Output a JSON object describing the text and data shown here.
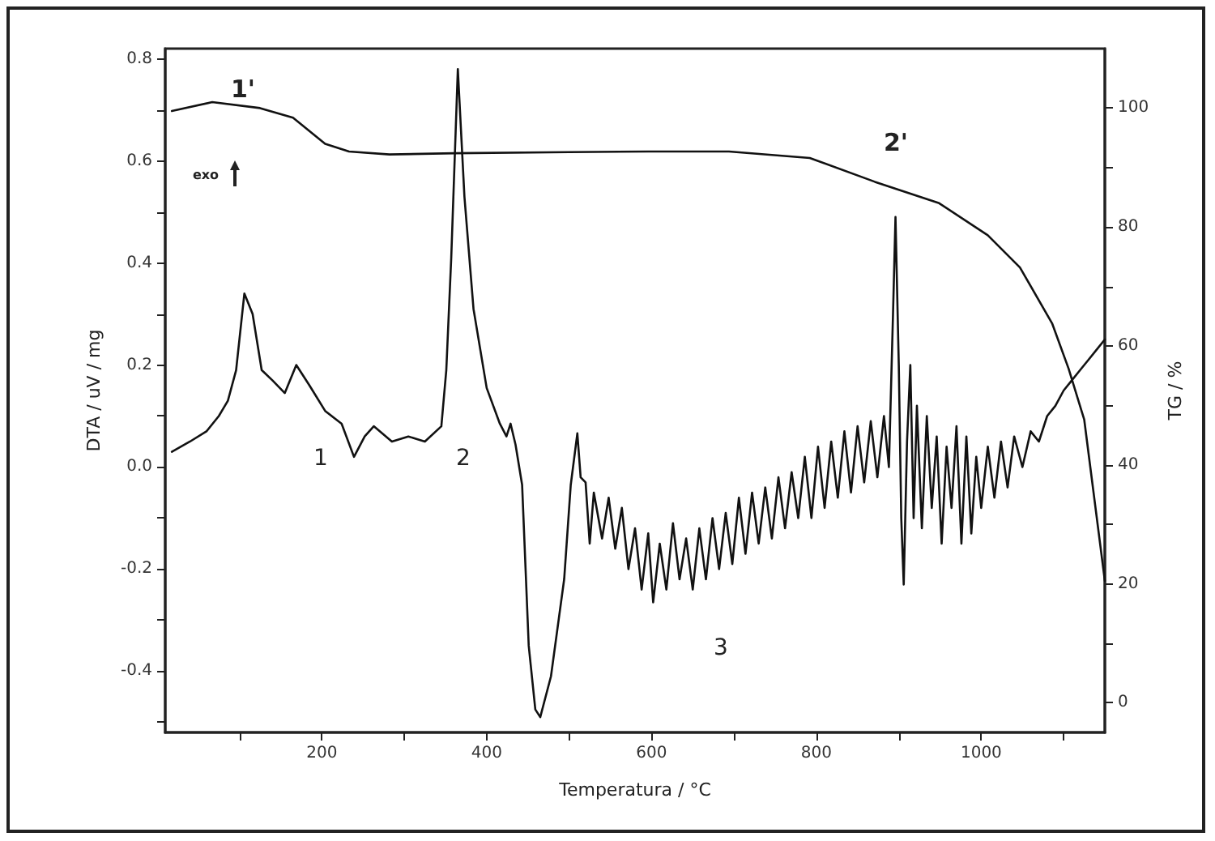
{
  "chart_data": {
    "type": "line",
    "xlabel": "Temperatura / °C",
    "ylabel": "DTA / uV / mg",
    "y2label": "TG / %",
    "xlim": [
      10,
      1150
    ],
    "ylim": [
      -0.52,
      0.82
    ],
    "y2lim": [
      -5,
      110
    ],
    "xticks": [
      {
        "value": 100,
        "label": null
      },
      200,
      {
        "value": 300,
        "label": null
      },
      400,
      {
        "value": 500,
        "label": null
      },
      600,
      {
        "value": 700,
        "label": null
      },
      800,
      {
        "value": 900,
        "label": null
      },
      1000,
      {
        "value": 1100,
        "label": null
      }
    ],
    "yticks": [
      {
        "value": -0.5,
        "label": null
      },
      -0.4,
      {
        "value": -0.3,
        "label": null
      },
      -0.2,
      {
        "value": -0.1,
        "label": null
      },
      {
        "value": 0,
        "label": "0.0"
      },
      {
        "value": 0.1,
        "label": null
      },
      0.2,
      {
        "value": 0.3,
        "label": null
      },
      0.4,
      {
        "value": 0.5,
        "label": null
      },
      0.6,
      {
        "value": 0.7,
        "label": null
      },
      0.8
    ],
    "y2ticks": [
      0,
      {
        "value": 10,
        "label": null
      },
      20,
      {
        "value": 30,
        "label": null
      },
      40,
      {
        "value": 50,
        "label": null
      },
      60,
      {
        "value": 70,
        "label": null
      },
      80,
      {
        "value": 90,
        "label": null
      },
      100
    ],
    "grid": false,
    "marker": "none",
    "line_style": "solid",
    "series": [
      {
        "color": "#111111",
        "x": [
          18,
          40,
          60,
          75,
          86,
          96,
          106,
          116,
          127,
          140,
          155,
          169,
          185,
          204,
          224,
          239,
          252,
          263,
          285,
          305,
          325,
          345,
          351,
          357,
          365,
          373,
          384,
          400,
          416,
          424,
          429,
          435,
          443,
          451,
          459,
          465,
          478,
          494,
          502,
          510,
          514,
          520,
          525,
          530,
          540,
          548,
          556,
          564,
          572,
          580,
          588,
          596,
          602,
          610,
          618,
          626,
          634,
          642,
          650,
          658,
          666,
          674,
          682,
          690,
          698,
          706,
          714,
          722,
          730,
          738,
          746,
          754,
          762,
          770,
          778,
          786,
          794,
          802,
          810,
          818,
          826,
          834,
          842,
          850,
          858,
          866,
          874,
          882,
          888,
          893,
          896,
          900,
          903,
          906,
          910,
          914,
          918,
          922,
          928,
          934,
          940,
          946,
          952,
          958,
          964,
          970,
          976,
          982,
          988,
          994,
          1000,
          1008,
          1016,
          1024,
          1032,
          1040,
          1050,
          1060,
          1070,
          1080,
          1090,
          1100,
          1110,
          1120,
          1130,
          1140,
          1150
        ],
        "values": [
          0.03,
          0.05,
          0.07,
          0.1,
          0.13,
          0.19,
          0.34,
          0.3,
          0.19,
          0.17,
          0.145,
          0.2,
          0.16,
          0.11,
          0.085,
          0.02,
          0.06,
          0.08,
          0.05,
          0.06,
          0.05,
          0.08,
          0.19,
          0.41,
          0.78,
          0.53,
          0.31,
          0.155,
          0.085,
          0.06,
          0.085,
          0.044,
          -0.035,
          -0.35,
          -0.475,
          -0.49,
          -0.41,
          -0.22,
          -0.035,
          0.066,
          -0.02,
          -0.03,
          -0.15,
          -0.05,
          -0.14,
          -0.06,
          -0.16,
          -0.08,
          -0.2,
          -0.12,
          -0.24,
          -0.13,
          -0.265,
          -0.15,
          -0.24,
          -0.11,
          -0.22,
          -0.14,
          -0.24,
          -0.12,
          -0.22,
          -0.1,
          -0.2,
          -0.09,
          -0.19,
          -0.06,
          -0.17,
          -0.05,
          -0.15,
          -0.04,
          -0.14,
          -0.02,
          -0.12,
          -0.01,
          -0.1,
          0.02,
          -0.1,
          0.04,
          -0.08,
          0.05,
          -0.06,
          0.07,
          -0.05,
          0.08,
          -0.03,
          0.09,
          -0.02,
          0.1,
          0.0,
          0.3,
          0.49,
          0.2,
          -0.1,
          -0.23,
          0.05,
          0.2,
          -0.1,
          0.12,
          -0.12,
          0.1,
          -0.08,
          0.06,
          -0.15,
          0.04,
          -0.08,
          0.08,
          -0.15,
          0.06,
          -0.13,
          0.02,
          -0.08,
          0.04,
          -0.06,
          0.05,
          -0.04,
          0.06,
          0.0,
          0.07,
          0.05,
          0.1,
          0.12,
          0.15,
          0.17,
          0.19,
          0.21,
          0.23,
          0.25
        ]
      },
      {
        "color": "#111111",
        "axis": "y2",
        "x": [
          18,
          67,
          125,
          165,
          204,
          233,
          282,
          361,
          500,
          596,
          694,
          792,
          871,
          949,
          1008,
          1047,
          1086,
          1106,
          1125,
          1150
        ],
        "values": [
          99.5,
          101,
          100,
          98.4,
          94,
          92.7,
          92.2,
          92.4,
          92.6,
          92.7,
          92.7,
          91.6,
          87.6,
          84,
          78.6,
          73.2,
          63.8,
          56.2,
          47.6,
          20.5
        ]
      }
    ],
    "annotations": [
      "1'",
      "2'",
      "1",
      "2",
      "3",
      "exo"
    ]
  }
}
